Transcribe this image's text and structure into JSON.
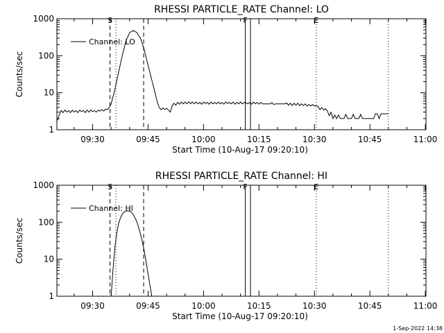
{
  "chart_data": [
    {
      "type": "line",
      "title": "RHESSI PARTICLE_RATE Channel: LO",
      "xlabel": "Start Time (10-Aug-17 09:20:10)",
      "ylabel": "Counts/sec",
      "yscale": "log",
      "ylim": [
        1,
        1000
      ],
      "xlim": [
        0.33,
        100.17
      ],
      "x_unit": "minutes after 09:20:10",
      "x_ticks": [
        {
          "t": 10,
          "label": "09:30"
        },
        {
          "t": 25,
          "label": "09:45"
        },
        {
          "t": 40,
          "label": "10:00"
        },
        {
          "t": 55,
          "label": "10:15"
        },
        {
          "t": 70,
          "label": "10:30"
        },
        {
          "t": 85,
          "label": "10:45"
        },
        {
          "t": 100,
          "label": "11:00"
        }
      ],
      "y_ticks": [
        {
          "v": 1,
          "label": "1"
        },
        {
          "v": 10,
          "label": "10"
        },
        {
          "v": 100,
          "label": "100"
        },
        {
          "v": 1000,
          "label": "1000"
        }
      ],
      "legend": {
        "position": "top-left",
        "entries": [
          "Channel: LO"
        ]
      },
      "markers": [
        {
          "t": 14.7,
          "label": "S",
          "style": "dashed"
        },
        {
          "t": 16.3,
          "label": "",
          "style": "dotted"
        },
        {
          "t": 23.8,
          "label": "",
          "style": "dashed"
        },
        {
          "t": 51.3,
          "label": "F",
          "style": "solid"
        },
        {
          "t": 52.7,
          "label": "",
          "style": "solid"
        },
        {
          "t": 70.5,
          "label": "E",
          "style": "dotted"
        },
        {
          "t": 90.0,
          "label": "",
          "style": "dotted"
        }
      ],
      "series": [
        {
          "name": "Channel: LO",
          "points": [
            [
              0.5,
              1.8
            ],
            [
              1,
              2.6
            ],
            [
              1.5,
              3.3
            ],
            [
              2,
              2.9
            ],
            [
              2.5,
              3.4
            ],
            [
              3,
              3.0
            ],
            [
              3.5,
              3.3
            ],
            [
              4,
              2.9
            ],
            [
              4.5,
              3.4
            ],
            [
              5,
              3.0
            ],
            [
              5.5,
              3.3
            ],
            [
              6,
              2.9
            ],
            [
              6.5,
              3.4
            ],
            [
              7,
              3.1
            ],
            [
              7.5,
              3.3
            ],
            [
              8,
              2.9
            ],
            [
              8.5,
              3.4
            ],
            [
              9,
              3.0
            ],
            [
              9.5,
              3.4
            ],
            [
              10,
              3.1
            ],
            [
              10.5,
              3.3
            ],
            [
              11,
              3.0
            ],
            [
              11.5,
              3.4
            ],
            [
              12,
              3.2
            ],
            [
              12.5,
              3.5
            ],
            [
              13,
              3.2
            ],
            [
              13.5,
              3.6
            ],
            [
              14,
              3.5
            ],
            [
              14.5,
              4.0
            ],
            [
              15,
              5
            ],
            [
              16,
              12
            ],
            [
              17,
              35
            ],
            [
              18,
              100
            ],
            [
              19,
              250
            ],
            [
              20,
              420
            ],
            [
              21,
              480
            ],
            [
              22,
              420
            ],
            [
              23,
              290
            ],
            [
              24,
              140
            ],
            [
              25,
              55
            ],
            [
              26,
              22
            ],
            [
              27,
              9
            ],
            [
              27.5,
              5.5
            ],
            [
              28,
              4
            ],
            [
              28.5,
              3.5
            ],
            [
              29,
              3.9
            ],
            [
              29.5,
              3.5
            ],
            [
              30,
              3.8
            ],
            [
              30.5,
              3.4
            ],
            [
              31,
              3.0
            ],
            [
              31.5,
              4.4
            ],
            [
              32,
              5.2
            ],
            [
              32.5,
              4.6
            ],
            [
              33,
              5.5
            ],
            [
              33.5,
              4.9
            ],
            [
              34,
              5.6
            ],
            [
              34.5,
              5.0
            ],
            [
              35,
              5.6
            ],
            [
              35.5,
              5.0
            ],
            [
              36,
              5.7
            ],
            [
              36.5,
              5.1
            ],
            [
              37,
              5.6
            ],
            [
              37.5,
              5.0
            ],
            [
              38,
              5.6
            ],
            [
              38.5,
              5.0
            ],
            [
              39,
              5.5
            ],
            [
              39.5,
              4.9
            ],
            [
              40,
              5.6
            ],
            [
              40.5,
              5.1
            ],
            [
              41,
              5.5
            ],
            [
              41.5,
              4.9
            ],
            [
              42,
              5.6
            ],
            [
              42.5,
              5.0
            ],
            [
              43,
              5.5
            ],
            [
              43.5,
              5.0
            ],
            [
              44,
              5.6
            ],
            [
              44.5,
              5.0
            ],
            [
              45,
              5.5
            ],
            [
              45.5,
              4.9
            ],
            [
              46,
              5.6
            ],
            [
              46.5,
              5.1
            ],
            [
              47,
              5.5
            ],
            [
              47.5,
              5.0
            ],
            [
              48,
              5.6
            ],
            [
              48.5,
              4.9
            ],
            [
              49,
              5.5
            ],
            [
              49.5,
              5.0
            ],
            [
              50,
              5.6
            ],
            [
              50.5,
              5.0
            ],
            [
              51,
              5.5
            ],
            [
              51.5,
              5.3
            ],
            [
              52,
              5.0
            ],
            [
              52.5,
              5.5
            ],
            [
              53,
              4.9
            ],
            [
              53.5,
              5.6
            ],
            [
              54,
              5.0
            ],
            [
              54.5,
              5.5
            ],
            [
              55,
              4.9
            ],
            [
              55.5,
              5.5
            ],
            [
              56,
              5.0
            ],
            [
              57,
              5.0
            ],
            [
              58,
              5.0
            ],
            [
              58.5,
              5.4
            ],
            [
              59,
              4.8
            ],
            [
              59.5,
              5.0
            ],
            [
              60,
              5.0
            ],
            [
              61,
              5.0
            ],
            [
              62,
              5.0
            ],
            [
              62.5,
              5.3
            ],
            [
              63,
              4.6
            ],
            [
              63.5,
              5.2
            ],
            [
              64,
              4.5
            ],
            [
              64.5,
              5.2
            ],
            [
              65,
              4.6
            ],
            [
              65.5,
              5.2
            ],
            [
              66,
              4.5
            ],
            [
              66.5,
              5.0
            ],
            [
              67,
              4.5
            ],
            [
              67.5,
              5.0
            ],
            [
              68,
              4.4
            ],
            [
              68.5,
              4.8
            ],
            [
              69,
              4.4
            ],
            [
              69.5,
              4.8
            ],
            [
              70,
              4.4
            ],
            [
              70.5,
              4.5
            ],
            [
              71,
              4.2
            ],
            [
              71.5,
              3.5
            ],
            [
              72,
              4.0
            ],
            [
              72.5,
              3.4
            ],
            [
              73,
              3.7
            ],
            [
              73.5,
              3.2
            ],
            [
              74,
              2.4
            ],
            [
              74.5,
              3.0
            ],
            [
              75,
              2.0
            ],
            [
              75.5,
              2.5
            ],
            [
              76,
              2.0
            ],
            [
              76.5,
              2.5
            ],
            [
              77,
              2.0
            ],
            [
              78,
              2.0
            ],
            [
              78.5,
              2.6
            ],
            [
              79,
              2.0
            ],
            [
              80,
              2.0
            ],
            [
              80.5,
              2.6
            ],
            [
              81,
              2.0
            ],
            [
              82,
              2.0
            ],
            [
              82.5,
              2.6
            ],
            [
              83,
              2.0
            ],
            [
              84,
              2.0
            ],
            [
              85,
              2.0
            ],
            [
              86,
              2.0
            ],
            [
              86.5,
              2.7
            ],
            [
              87,
              2.7
            ],
            [
              87.5,
              2.0
            ],
            [
              88,
              2.7
            ],
            [
              89,
              2.7
            ],
            [
              90,
              2.7
            ]
          ]
        }
      ]
    },
    {
      "type": "line",
      "title": "RHESSI PARTICLE_RATE Channel: HI",
      "xlabel": "Start Time (10-Aug-17 09:20:10)",
      "ylabel": "Counts/sec",
      "yscale": "log",
      "ylim": [
        1,
        1000
      ],
      "xlim": [
        0.33,
        100.17
      ],
      "x_unit": "minutes after 09:20:10",
      "x_ticks": [
        {
          "t": 10,
          "label": "09:30"
        },
        {
          "t": 25,
          "label": "09:45"
        },
        {
          "t": 40,
          "label": "10:00"
        },
        {
          "t": 55,
          "label": "10:15"
        },
        {
          "t": 70,
          "label": "10:30"
        },
        {
          "t": 85,
          "label": "10:45"
        },
        {
          "t": 100,
          "label": "11:00"
        }
      ],
      "y_ticks": [
        {
          "v": 1,
          "label": "1"
        },
        {
          "v": 10,
          "label": "10"
        },
        {
          "v": 100,
          "label": "100"
        },
        {
          "v": 1000,
          "label": "1000"
        }
      ],
      "legend": {
        "position": "top-left",
        "entries": [
          "Channel: HI"
        ]
      },
      "markers": [
        {
          "t": 14.7,
          "label": "S",
          "style": "dashed"
        },
        {
          "t": 16.3,
          "label": "",
          "style": "dotted"
        },
        {
          "t": 23.8,
          "label": "",
          "style": "dashed"
        },
        {
          "t": 51.3,
          "label": "F",
          "style": "solid"
        },
        {
          "t": 52.7,
          "label": "",
          "style": "solid"
        },
        {
          "t": 70.5,
          "label": "E",
          "style": "dotted"
        },
        {
          "t": 90.0,
          "label": "",
          "style": "dotted"
        }
      ],
      "series": [
        {
          "name": "Channel: HI",
          "points": [
            [
              15.0,
              1
            ],
            [
              15.5,
              5
            ],
            [
              16,
              20
            ],
            [
              16.5,
              50
            ],
            [
              17,
              90
            ],
            [
              17.5,
              130
            ],
            [
              18,
              165
            ],
            [
              18.5,
              190
            ],
            [
              19,
              200
            ],
            [
              19.5,
              205
            ],
            [
              20,
              200
            ],
            [
              20.5,
              185
            ],
            [
              21,
              160
            ],
            [
              21.5,
              130
            ],
            [
              22,
              100
            ],
            [
              22.5,
              70
            ],
            [
              23,
              45
            ],
            [
              23.5,
              28
            ],
            [
              24,
              16
            ],
            [
              24.5,
              8
            ],
            [
              25,
              4
            ],
            [
              25.5,
              2
            ],
            [
              26,
              1
            ]
          ]
        }
      ]
    }
  ],
  "footer": {
    "timestamp": "1-Sep-2022 14:38"
  }
}
